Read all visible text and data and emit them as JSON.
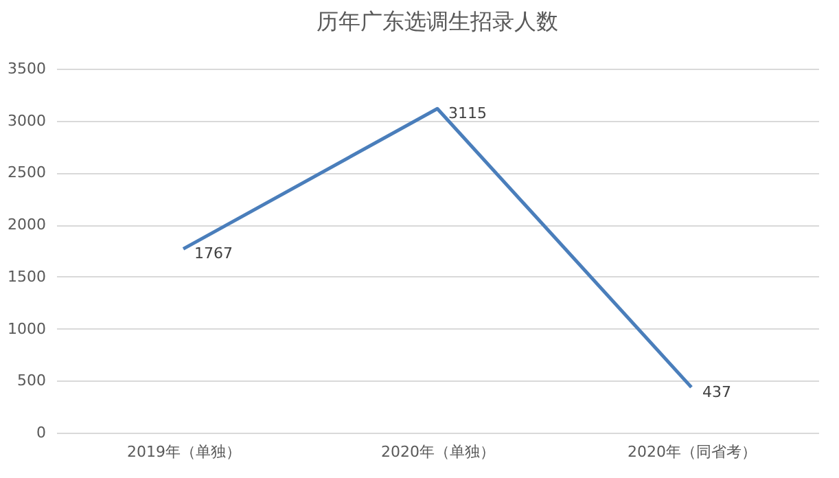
{
  "chart_data": {
    "type": "line",
    "title": "历年广东选调生招录人数",
    "categories": [
      "2019年（单独）",
      "2020年（单独）",
      "2020年（同省考）"
    ],
    "series": [
      {
        "color": "#4a7ebb",
        "values": [
          1767,
          3115,
          437
        ]
      }
    ],
    "ylim": [
      0,
      3500
    ],
    "yticks": [
      0,
      500,
      1000,
      1500,
      2000,
      2500,
      3000,
      3500
    ],
    "grid": "y",
    "data_labels": true,
    "marker": "none",
    "line_style": "solid",
    "legend": false
  }
}
